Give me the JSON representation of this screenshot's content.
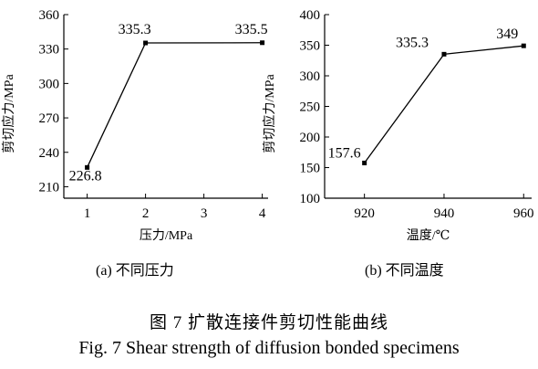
{
  "figure": {
    "caption_cn": "图 7   扩散连接件剪切性能曲线",
    "caption_en": "Fig. 7 Shear strength of diffusion bonded specimens"
  },
  "chart_data": [
    {
      "type": "line",
      "subcaption": "(a)  不同压力",
      "xlabel": "压力/MPa",
      "ylabel": "剪切应力/MPa",
      "x_ticks": [
        1,
        2,
        3,
        4
      ],
      "y_ticks": [
        210,
        240,
        270,
        300,
        330,
        360
      ],
      "xlim": [
        0.6,
        4.1
      ],
      "ylim": [
        200,
        360
      ],
      "series": [
        {
          "x": [
            1,
            2,
            4
          ],
          "values": [
            226.8,
            335.3,
            335.5
          ],
          "labels": [
            "226.8",
            "335.3",
            "335.5"
          ]
        }
      ]
    },
    {
      "type": "line",
      "subcaption": "(b)  不同温度",
      "xlabel": "温度/℃",
      "ylabel": "剪切应力/MPa",
      "x_ticks": [
        920,
        940,
        960
      ],
      "y_ticks": [
        100,
        150,
        200,
        250,
        300,
        350,
        400
      ],
      "xlim": [
        910,
        962
      ],
      "ylim": [
        100,
        400
      ],
      "series": [
        {
          "x": [
            920,
            940,
            960
          ],
          "values": [
            157.6,
            335.3,
            349
          ],
          "labels": [
            "157.6",
            "335.3",
            "349"
          ]
        }
      ]
    }
  ]
}
